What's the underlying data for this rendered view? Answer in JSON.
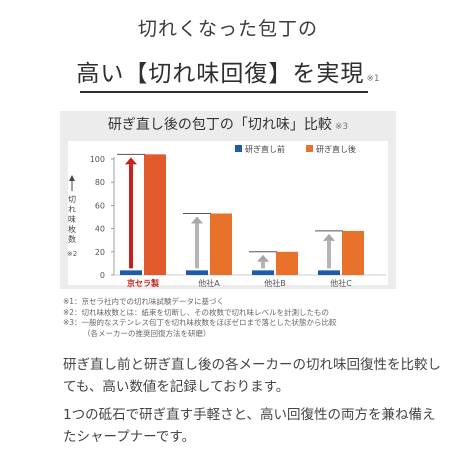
{
  "headline": {
    "line1": "切れくなった包丁の",
    "line2": "高い【切れ味回復】を実現",
    "line2_note": "※1"
  },
  "chart_data": {
    "type": "bar",
    "title": "研ぎ直し後の包丁の「切れ味」比較",
    "title_note": "※3",
    "ylabel": "切れ味枚数",
    "ylabel_note": "※2",
    "ylim": [
      0,
      100
    ],
    "yticks": [
      0,
      20,
      40,
      60,
      80,
      100
    ],
    "categories": [
      "京セラ製",
      "他社A",
      "他社B",
      "他社C"
    ],
    "highlight_category": 0,
    "series": [
      {
        "name": "研ぎ直し前",
        "values": [
          4,
          4,
          4,
          4
        ]
      },
      {
        "name": "研ぎ直し後",
        "values": [
          104,
          53,
          20,
          38
        ]
      }
    ],
    "legend_position": "top-right",
    "colors": {
      "before": "#1e5bab",
      "after": "#e8722b",
      "after_highlight": "#e05a2b",
      "arrow_highlight": "#c8201d",
      "arrow_normal": "#a8a8a8",
      "highlight_label": "#c8201d"
    }
  },
  "notes": [
    "※1：京セラ社内での切れ味試験データに基づく",
    "※2：切れ味枚数とは：紙束を切断し、その枚数で切れ味レベルを計測したもの",
    "※3：一般的なステンレス包丁を切れ味枚数をほぼゼロまで落とした状態から比較",
    "（各メーカーの推奨回復方法を研磨）"
  ],
  "body": {
    "p1": "研ぎ直し前と研ぎ直し後の各メーカーの切れ味回復性を比較しても、高い数値を記録しております。",
    "p2": "1つの砥石で研ぎ直す手軽さと、高い回復性の両方を兼ね備えたシャープナーです。"
  }
}
